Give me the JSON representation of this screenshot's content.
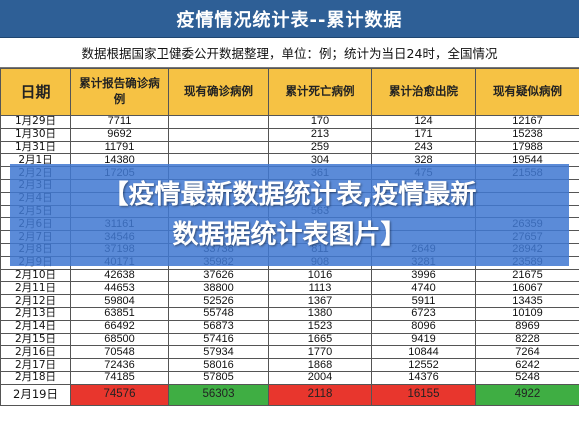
{
  "title": "疫情情况统计表--累计数据",
  "note": "数据根据国家卫健委公开数据整理，单位：例；统计为当日24时，全国情况",
  "columns": [
    "日期",
    "累计报告确诊病例",
    "现有确诊病例",
    "累计死亡病例",
    "累计治愈出院",
    "现有疑似病例"
  ],
  "rows": [
    [
      "1月29日",
      "7711",
      "",
      "170",
      "124",
      "12167"
    ],
    [
      "1月30日",
      "9692",
      "",
      "213",
      "171",
      "15238"
    ],
    [
      "1月31日",
      "11791",
      "",
      "259",
      "243",
      "17988"
    ],
    [
      "2月1日",
      "14380",
      "",
      "304",
      "328",
      "19544"
    ],
    [
      "2月2日",
      "17205",
      "",
      "361",
      "475",
      "21558"
    ],
    [
      "2月3日",
      "",
      "",
      "",
      "",
      ""
    ],
    [
      "2月4日",
      "",
      "",
      "",
      "",
      ""
    ],
    [
      "2月5日",
      "",
      "",
      "563",
      "",
      ""
    ],
    [
      "2月6日",
      "31161",
      "",
      "",
      "",
      "26359"
    ],
    [
      "2月7日",
      "34546",
      "",
      "",
      "",
      "27657"
    ],
    [
      "2月8日",
      "37198",
      "33738",
      "811",
      "2649",
      "28942"
    ],
    [
      "2月9日",
      "40171",
      "35982",
      "908",
      "3281",
      "23589"
    ],
    [
      "2月10日",
      "42638",
      "37626",
      "1016",
      "3996",
      "21675"
    ],
    [
      "2月11日",
      "44653",
      "38800",
      "1113",
      "4740",
      "16067"
    ],
    [
      "2月12日",
      "59804",
      "52526",
      "1367",
      "5911",
      "13435"
    ],
    [
      "2月13日",
      "63851",
      "55748",
      "1380",
      "6723",
      "10109"
    ],
    [
      "2月14日",
      "66492",
      "56873",
      "1523",
      "8096",
      "8969"
    ],
    [
      "2月15日",
      "68500",
      "57416",
      "1665",
      "9419",
      "8228"
    ],
    [
      "2月16日",
      "70548",
      "57934",
      "1770",
      "10844",
      "7264"
    ],
    [
      "2月17日",
      "72436",
      "58016",
      "1868",
      "12552",
      "6242"
    ],
    [
      "2月18日",
      "74185",
      "57805",
      "2004",
      "14376",
      "5248"
    ]
  ],
  "last_row": [
    "2月19日",
    "74576",
    "56303",
    "2118",
    "16155",
    "4922"
  ],
  "highlight_colors": {
    "header": "#f6c244",
    "title": "#2e5f96",
    "red": "#e8362d",
    "green": "#3fae43",
    "banner": "#4078d2"
  },
  "banner": {
    "line1": "【疫情最新数据统计表,疫情最新",
    "line2": "数据据统计表图片】"
  }
}
